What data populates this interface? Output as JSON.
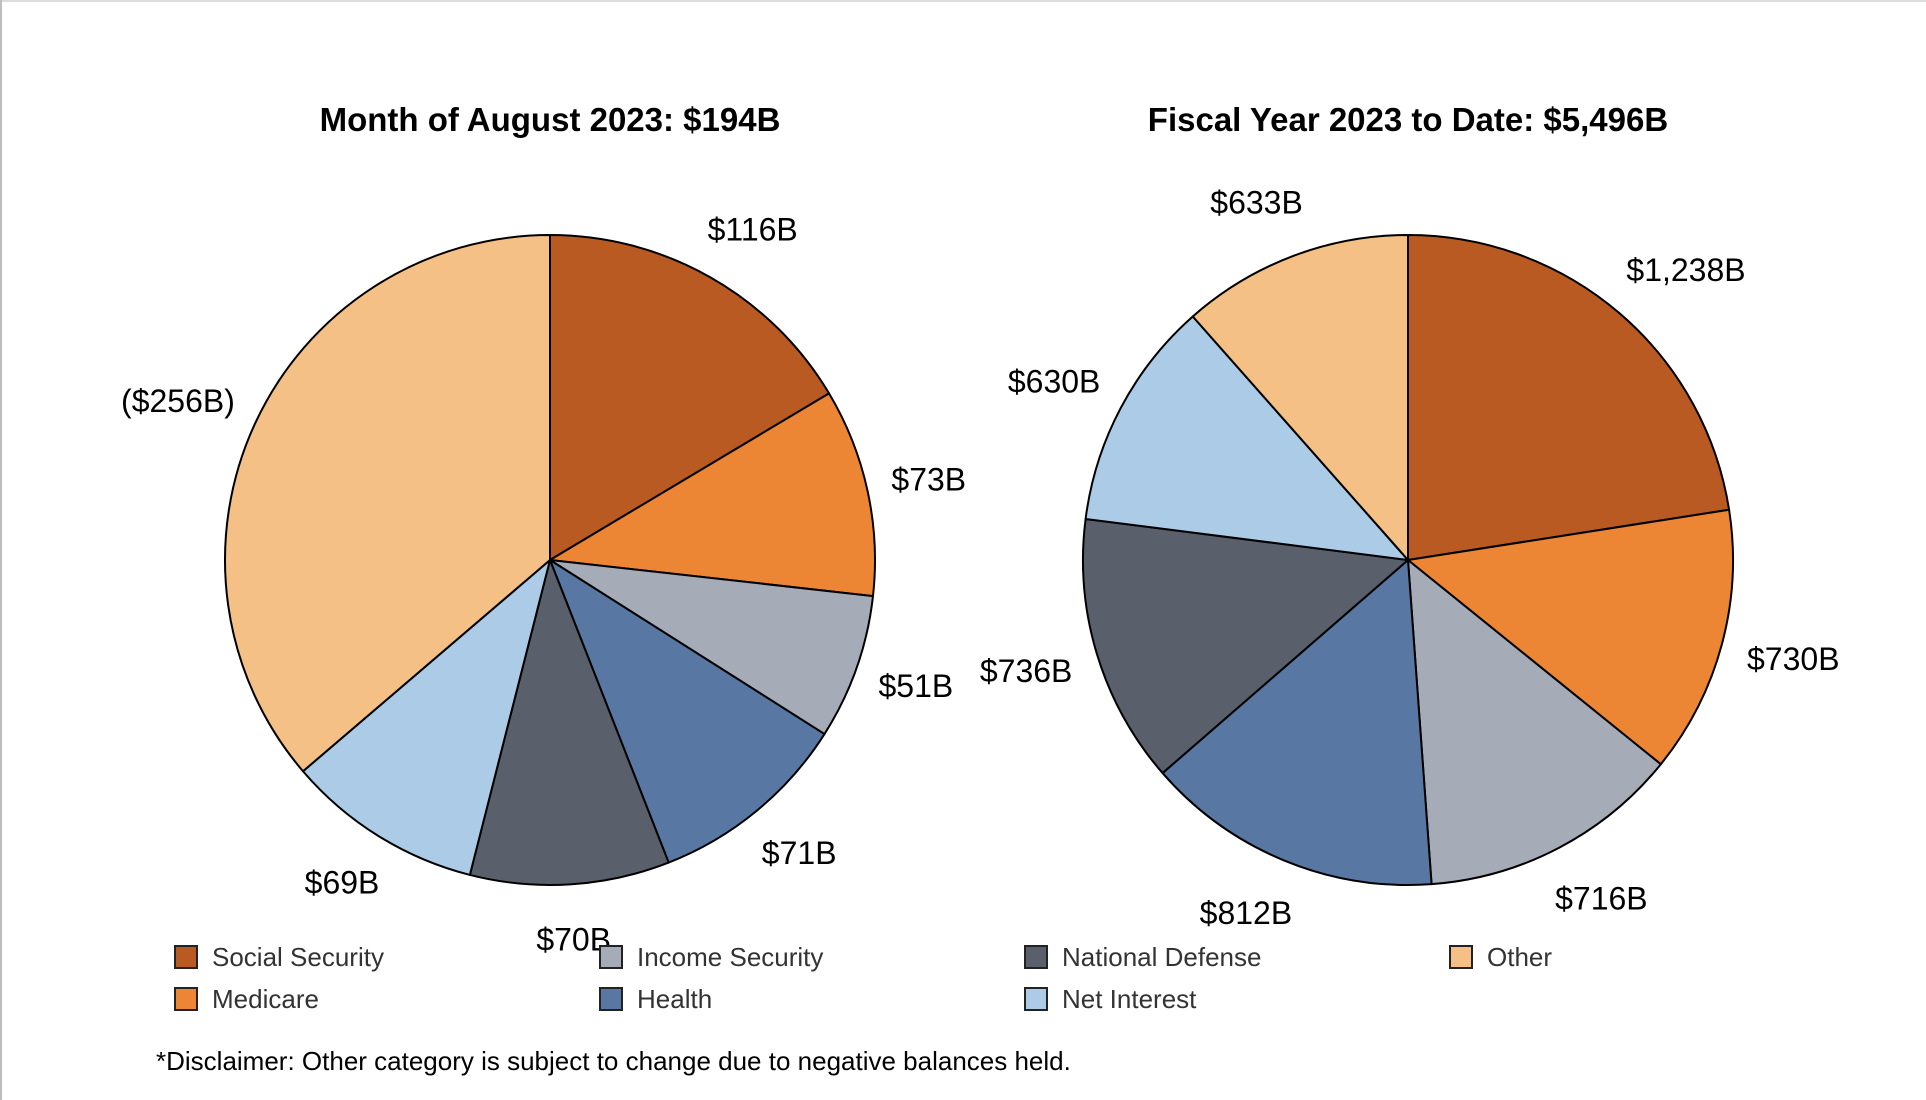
{
  "colors": {
    "social_security": "#BA5A23",
    "medicare": "#ED8634",
    "income_security": "#A6ACB7",
    "health": "#5877A3",
    "national_defense": "#595F6B",
    "net_interest": "#ABCBE7",
    "other": "#F4C085"
  },
  "legend": {
    "items": [
      {
        "key": "social_security",
        "label": "Social Security"
      },
      {
        "key": "income_security",
        "label": "Income Security"
      },
      {
        "key": "national_defense",
        "label": "National Defense"
      },
      {
        "key": "other",
        "label": "Other"
      },
      {
        "key": "medicare",
        "label": "Medicare"
      },
      {
        "key": "health",
        "label": "Health"
      },
      {
        "key": "net_interest",
        "label": "Net Interest"
      }
    ]
  },
  "disclaimer": "*Disclaimer: Other category is subject to change due to negative balances held.",
  "chart_data": [
    {
      "type": "pie",
      "title": "Month of August 2023: $194B",
      "slices": [
        {
          "key": "social_security",
          "value": 116,
          "label": "$116B"
        },
        {
          "key": "medicare",
          "value": 73,
          "label": "$73B"
        },
        {
          "key": "income_security",
          "value": 51,
          "label": "$51B"
        },
        {
          "key": "health",
          "value": 71,
          "label": "$71B"
        },
        {
          "key": "national_defense",
          "value": 70,
          "label": "$70B"
        },
        {
          "key": "net_interest",
          "value": 69,
          "label": "$69B"
        },
        {
          "key": "other",
          "value": 256,
          "label": "($256B)"
        }
      ]
    },
    {
      "type": "pie",
      "title": "Fiscal Year 2023 to Date: $5,496B",
      "slices": [
        {
          "key": "social_security",
          "value": 1238,
          "label": "$1,238B"
        },
        {
          "key": "medicare",
          "value": 730,
          "label": "$730B"
        },
        {
          "key": "income_security",
          "value": 716,
          "label": "$716B"
        },
        {
          "key": "health",
          "value": 812,
          "label": "$812B"
        },
        {
          "key": "national_defense",
          "value": 736,
          "label": "$736B"
        },
        {
          "key": "net_interest",
          "value": 630,
          "label": "$630B"
        },
        {
          "key": "other",
          "value": 633,
          "label": "$633B"
        }
      ]
    }
  ]
}
